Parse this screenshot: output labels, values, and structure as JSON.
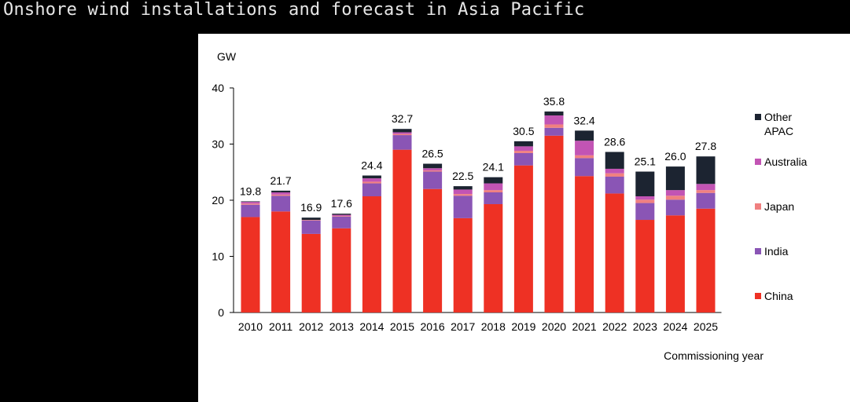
{
  "title": "Onshore wind installations and forecast in Asia Pacific",
  "chart_data": {
    "type": "bar",
    "stacked": true,
    "unit": "GW",
    "xlabel": "Commissioning year",
    "ylim": [
      0,
      40
    ],
    "yticks": [
      0,
      10,
      20,
      30,
      40
    ],
    "grid": false,
    "legend_position": "right",
    "categories": [
      "2010",
      "2011",
      "2012",
      "2013",
      "2014",
      "2015",
      "2016",
      "2017",
      "2018",
      "2019",
      "2020",
      "2021",
      "2022",
      "2023",
      "2024",
      "2025"
    ],
    "totals": [
      19.8,
      21.7,
      16.9,
      17.6,
      24.4,
      32.7,
      26.5,
      22.5,
      24.1,
      30.5,
      35.8,
      32.4,
      28.6,
      25.1,
      26.0,
      27.8
    ],
    "total_labels": [
      "19.8",
      "21.7",
      "16.9",
      "17.6",
      "24.4",
      "32.7",
      "26.5",
      "22.5",
      "24.1",
      "30.5",
      "35.8",
      "32.4",
      "28.6",
      "25.1",
      "26.0",
      "27.8"
    ],
    "series": [
      {
        "name": "China",
        "color": "#ee3124",
        "values": [
          17.0,
          18.0,
          14.0,
          15.0,
          20.7,
          29.0,
          22.0,
          16.8,
          19.3,
          26.2,
          31.5,
          24.3,
          21.2,
          16.5,
          17.3,
          18.5
        ]
      },
      {
        "name": "India",
        "color": "#8a55b5",
        "values": [
          2.2,
          2.8,
          2.4,
          2.1,
          2.3,
          2.6,
          3.1,
          4.0,
          2.1,
          2.2,
          1.4,
          3.2,
          3.0,
          3.0,
          2.8,
          2.8
        ]
      },
      {
        "name": "Japan",
        "color": "#f08080",
        "values": [
          0.2,
          0.2,
          0.1,
          0.1,
          0.3,
          0.2,
          0.2,
          0.3,
          0.4,
          0.4,
          0.6,
          0.5,
          0.6,
          0.6,
          0.7,
          0.5
        ]
      },
      {
        "name": "Australia",
        "color": "#c254b4",
        "values": [
          0.3,
          0.4,
          0.0,
          0.2,
          0.6,
          0.3,
          0.4,
          0.8,
          1.2,
          0.8,
          1.6,
          2.6,
          0.8,
          0.6,
          1.0,
          1.1
        ]
      },
      {
        "name": "Other APAC",
        "color": "#1c2431",
        "values": [
          0.1,
          0.3,
          0.4,
          0.2,
          0.5,
          0.6,
          0.8,
          0.6,
          1.1,
          0.9,
          0.7,
          1.8,
          3.0,
          4.4,
          4.2,
          4.9
        ]
      }
    ],
    "legend": [
      "Other APAC",
      "Australia",
      "Japan",
      "India",
      "China"
    ]
  }
}
